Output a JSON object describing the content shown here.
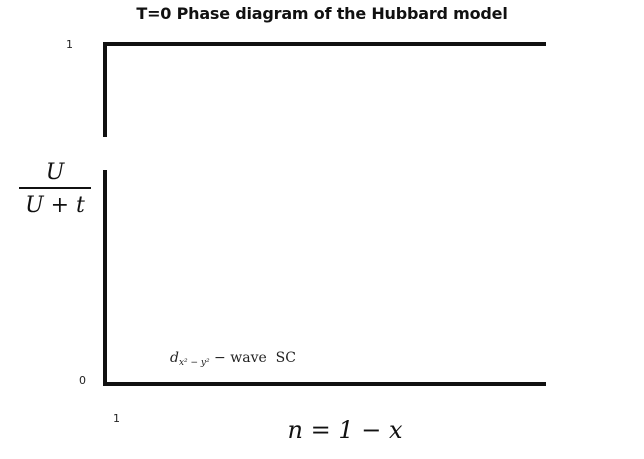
{
  "title": "T=0 Phase diagram of the Hubbard model",
  "axes": {
    "y_top_tick": "1",
    "y_bottom_tick": "0",
    "x_tick": "1",
    "y_label_numerator": "U",
    "y_label_denominator": "U + t",
    "x_label": "n = 1 − x"
  },
  "regions": {
    "sc_label_symbol": "d",
    "sc_label_subscript": "x² − y²",
    "sc_label_text": " − wave  SC"
  },
  "colors": {
    "background": "#ffffff",
    "lines": "#111111"
  }
}
